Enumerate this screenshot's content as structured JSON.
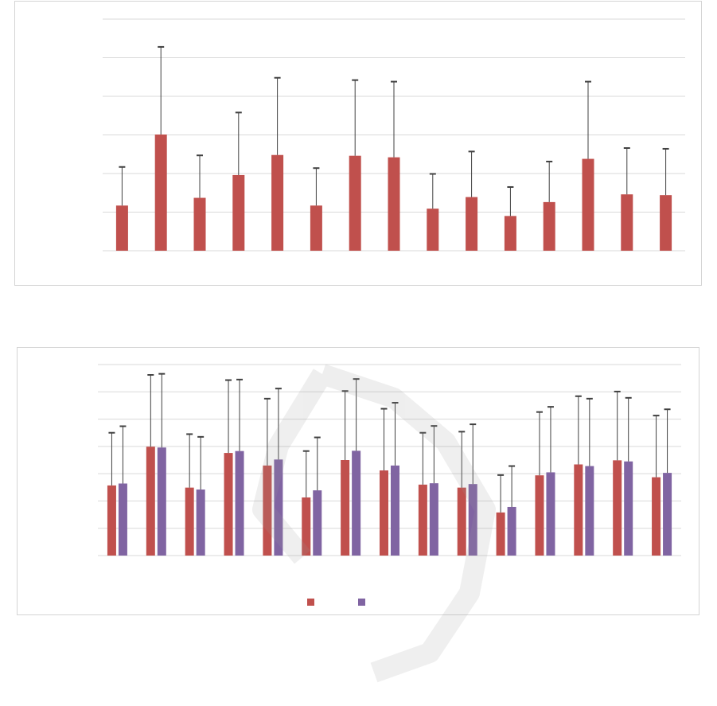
{
  "chart_data": [
    {
      "type": "bar",
      "title": "",
      "xlabel": "",
      "ylabel": "",
      "ylim": [
        0,
        6
      ],
      "grid": true,
      "legend": "none",
      "colors": [
        "#c0504d"
      ],
      "series": [
        {
          "values": [
            1.17,
            3.01,
            1.37,
            1.96,
            2.48,
            1.17,
            2.46,
            2.42,
            1.09,
            1.39,
            0.9,
            1.26,
            2.38,
            1.46,
            1.44
          ],
          "errors": [
            1.0,
            2.27,
            1.1,
            1.62,
            2.0,
            0.97,
            1.96,
            1.96,
            0.9,
            1.18,
            0.75,
            1.05,
            2.0,
            1.2,
            1.2
          ]
        }
      ]
    },
    {
      "type": "bar",
      "title": "",
      "xlabel": "",
      "ylabel": "",
      "ylim": [
        0,
        7
      ],
      "grid": true,
      "legend": "bottom",
      "colors": [
        "#c0504d",
        "#8064a2"
      ],
      "series": [
        {
          "values": [
            2.57,
            3.99,
            2.49,
            3.76,
            3.3,
            2.13,
            3.5,
            3.12,
            2.6,
            2.49,
            1.58,
            2.94,
            3.34,
            3.49,
            2.87
          ],
          "errors": [
            1.93,
            2.63,
            1.96,
            2.67,
            2.45,
            1.7,
            2.53,
            2.26,
            1.9,
            2.05,
            1.37,
            2.32,
            2.5,
            2.52,
            2.26
          ]
        },
        {
          "values": [
            2.64,
            3.96,
            2.42,
            3.83,
            3.52,
            2.39,
            3.84,
            3.3,
            2.65,
            2.62,
            1.78,
            3.05,
            3.28,
            3.45,
            3.03
          ],
          "errors": [
            2.1,
            2.7,
            1.93,
            2.62,
            2.6,
            1.94,
            2.63,
            2.3,
            2.1,
            2.19,
            1.5,
            2.4,
            2.47,
            2.33,
            2.33
          ]
        }
      ]
    }
  ]
}
